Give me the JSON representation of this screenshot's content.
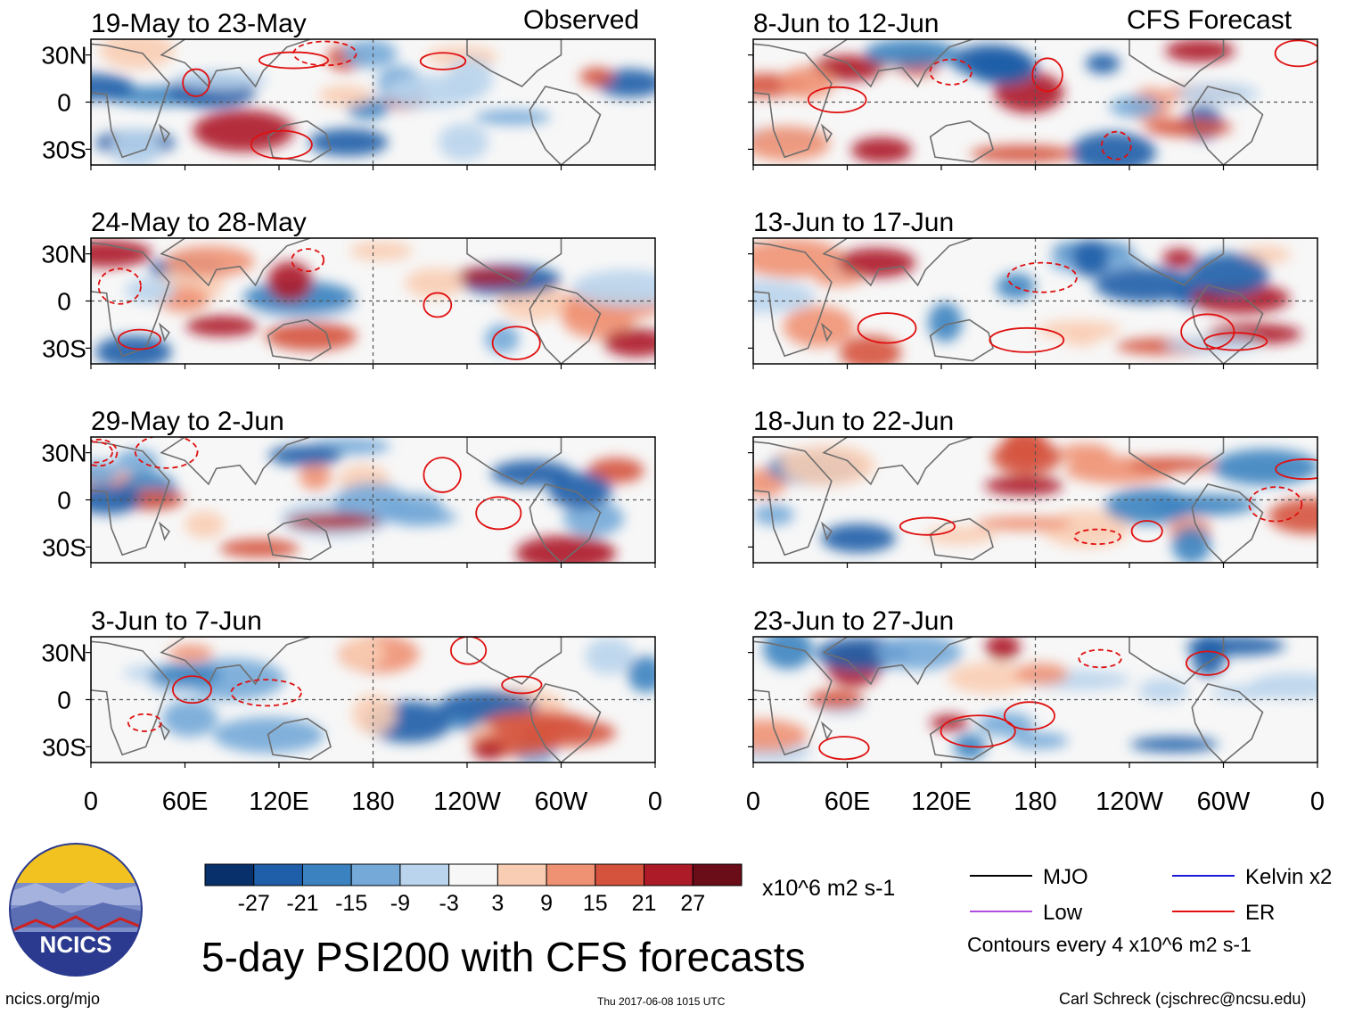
{
  "figure": {
    "main_title": "5-day PSI200 with CFS forecasts",
    "source_url": "ncics.org/mjo",
    "timestamp": "Thu 2017-06-08 1015 UTC",
    "credit": "Carl Schreck (cjschrec@ncsu.edu)",
    "logo_text": "NCICS",
    "label_observed": "Observed",
    "label_forecast": "CFS Forecast"
  },
  "chart_data": {
    "type": "heatmap",
    "variable": "200-hPa streamfunction anomaly (PSI200)",
    "units": "x10^6 m2 s-1",
    "contour_interval_label": "Contours every 4 x10^6 m2 s-1",
    "x_ticks": [
      "0",
      "60E",
      "120E",
      "180",
      "120W",
      "60W",
      "0"
    ],
    "y_ticks": [
      "30N",
      "0",
      "30S"
    ],
    "colorbar": {
      "ticks": [
        "-27",
        "-21",
        "-15",
        "-9",
        "-3",
        "3",
        "9",
        "15",
        "21",
        "27"
      ],
      "colors": [
        "#08306b",
        "#1f5ea8",
        "#3b83c0",
        "#74a9d8",
        "#b9d4ec",
        "#f7f7f7",
        "#f9cdb4",
        "#ef9274",
        "#d5533d",
        "#ad1a28",
        "#6b0d19"
      ]
    },
    "legend": [
      {
        "label": "MJO",
        "color": "#000000"
      },
      {
        "label": "Kelvin x2",
        "color": "#1a1ad6"
      },
      {
        "label": "Low",
        "color": "#b14be0"
      },
      {
        "label": "ER",
        "color": "#e01010"
      }
    ],
    "panels": {
      "observed": [
        {
          "period": "19-May to 23-May"
        },
        {
          "period": "24-May to 28-May"
        },
        {
          "period": "29-May to 2-Jun"
        },
        {
          "period": "3-Jun to 7-Jun"
        }
      ],
      "forecast": [
        {
          "period": "8-Jun to 12-Jun"
        },
        {
          "period": "13-Jun to 17-Jun"
        },
        {
          "period": "18-Jun to 22-Jun"
        },
        {
          "period": "23-Jun to 27-Jun"
        }
      ]
    }
  }
}
